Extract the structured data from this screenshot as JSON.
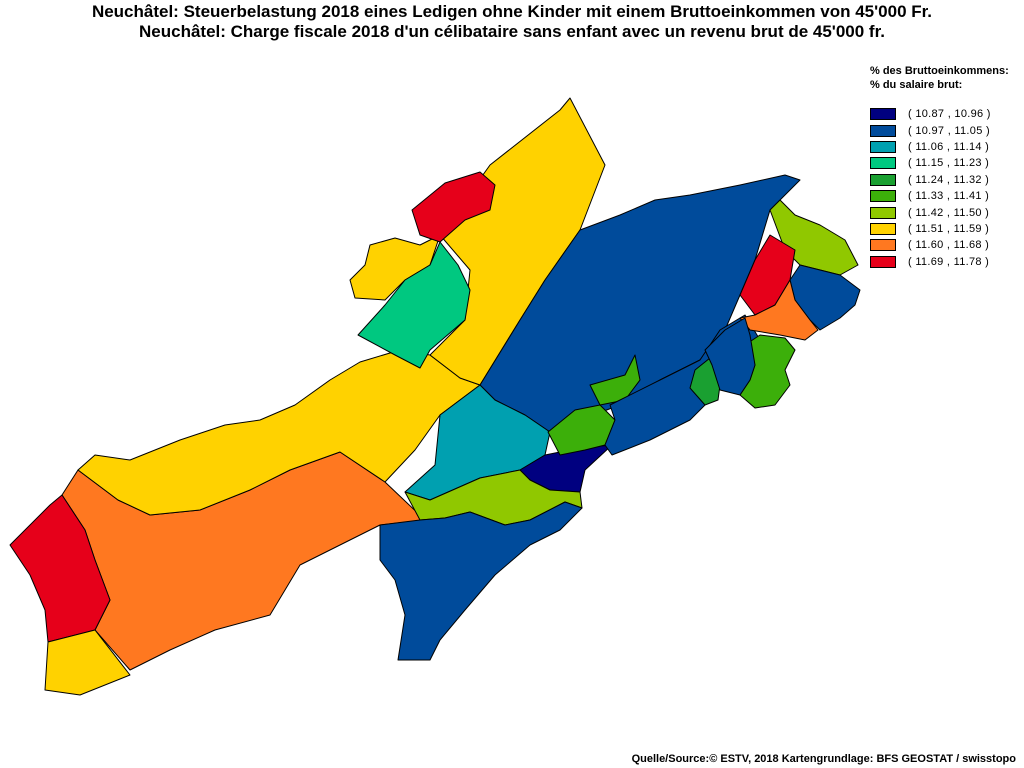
{
  "title": {
    "line1": "Neuchâtel: Steuerbelastung 2018 eines Ledigen ohne Kinder mit einem Bruttoeinkommen von 45'000 Fr.",
    "line2": "Neuchâtel: Charge fiscale 2018 d'un célibataire sans enfant avec un revenu brut de 45'000 fr."
  },
  "legend": {
    "title_de": "% des Bruttoeinkommens:",
    "title_fr": "% du salaire brut:",
    "classes": [
      {
        "label": "( 10.87 , 10.96 )",
        "color": "#000080"
      },
      {
        "label": "( 10.97 , 11.05 )",
        "color": "#004b9b"
      },
      {
        "label": "( 11.06 , 11.14 )",
        "color": "#00a0b0"
      },
      {
        "label": "( 11.15 , 11.23 )",
        "color": "#00c880"
      },
      {
        "label": "( 11.24 , 11.32 )",
        "color": "#1aa031"
      },
      {
        "label": "( 11.33 , 11.41 )",
        "color": "#3caf0a"
      },
      {
        "label": "( 11.42 , 11.50 )",
        "color": "#90c800"
      },
      {
        "label": "( 11.51 , 11.59 )",
        "color": "#ffd200"
      },
      {
        "label": "( 11.60 , 11.68 )",
        "color": "#ff7820"
      },
      {
        "label": "( 11.69 , 11.78 )",
        "color": "#e6001a"
      }
    ]
  },
  "source": "Quelle/Source:© ESTV, 2018 Kartengrundlage: BFS GEOSTAT / swisstopo"
}
